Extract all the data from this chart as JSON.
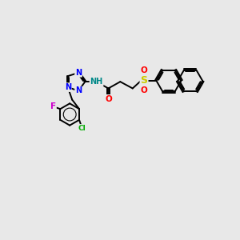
{
  "bg_color": "#e8e8e8",
  "bond_color": "#000000",
  "bond_width": 1.4,
  "atom_colors": {
    "N": "#0000ff",
    "O": "#ff0000",
    "F": "#cc00cc",
    "Cl": "#00aa00",
    "S": "#cccc00",
    "NH": "#008888",
    "C": "#000000"
  },
  "font_size": 7.5,
  "fig_width": 3.0,
  "fig_height": 3.0,
  "xlim": [
    0.5,
    10.5
  ],
  "ylim": [
    2.5,
    9.5
  ]
}
